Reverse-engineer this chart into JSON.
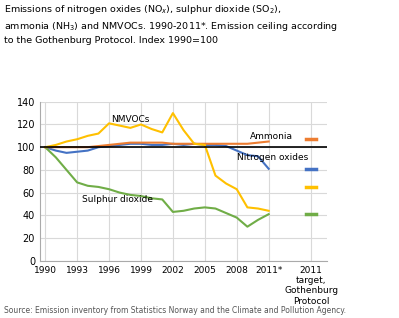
{
  "years": [
    1990,
    1991,
    1992,
    1993,
    1994,
    1995,
    1996,
    1997,
    1998,
    1999,
    2000,
    2001,
    2002,
    2003,
    2004,
    2005,
    2006,
    2007,
    2008,
    2009,
    2010,
    2011
  ],
  "NOx": [
    100,
    97,
    95,
    96,
    97,
    100,
    101,
    102,
    103,
    103,
    102,
    102,
    103,
    102,
    103,
    102,
    102,
    101,
    97,
    93,
    92,
    81
  ],
  "NOx_color": "#4472c4",
  "NOx_label": "Nitrogen oxides",
  "SO2": [
    100,
    91,
    80,
    69,
    66,
    65,
    63,
    60,
    58,
    57,
    55,
    54,
    43,
    44,
    46,
    47,
    46,
    42,
    38,
    30,
    36,
    41
  ],
  "SO2_color": "#70ad47",
  "SO2_label": "Sulphur dioxide",
  "NH3": [
    100,
    100,
    100,
    100,
    100,
    101,
    102,
    103,
    104,
    104,
    104,
    104,
    103,
    103,
    103,
    103,
    103,
    103,
    103,
    103,
    104,
    105
  ],
  "NH3_color": "#ed7d31",
  "NH3_label": "Ammonia",
  "NMVOC": [
    100,
    102,
    105,
    107,
    110,
    112,
    121,
    119,
    117,
    120,
    116,
    113,
    130,
    115,
    103,
    102,
    75,
    68,
    63,
    47,
    46,
    44
  ],
  "NMVOC_color": "#ffc000",
  "NMVOC_label": "NMVOCs",
  "gothenburg_NOx": 81,
  "gothenburg_SO2": 41,
  "gothenburg_NH3": 107,
  "gothenburg_NMVOC": 65,
  "ceiling_value": 100,
  "ceiling_color": "#000000",
  "ylim": [
    0,
    140
  ],
  "yticks": [
    0,
    20,
    40,
    60,
    80,
    100,
    120,
    140
  ],
  "background_color": "#ffffff",
  "grid_color": "#d9d9d9",
  "source": "Source: Emission inventory from Statistics Norway and the Climate and Pollution Agency."
}
